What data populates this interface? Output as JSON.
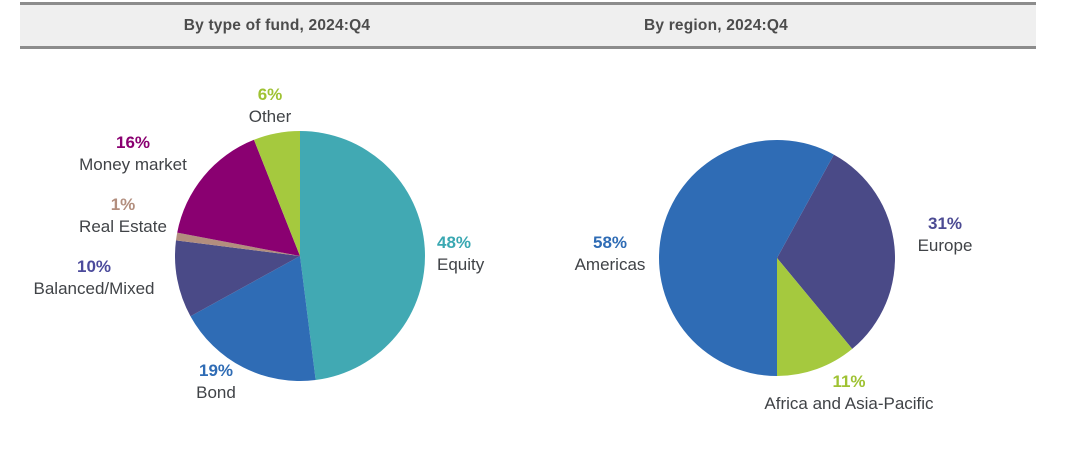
{
  "header": {
    "left_title": "By type of fund, 2024:Q4",
    "right_title": "By region, 2024:Q4"
  },
  "styles": {
    "background": "#ffffff",
    "header_bg": "#efefef",
    "header_border": "#8c8c8c",
    "header_text": "#4c4c4c",
    "category_text": "#404347"
  },
  "chart_data": [
    {
      "type": "pie",
      "title": "By type of fund, 2024:Q4",
      "unit": "%",
      "direction": "clockwise",
      "start_angle_deg": 0,
      "legend_position": "outside-callouts",
      "slices": [
        {
          "label": "Equity",
          "value": 48,
          "pct_label": "48%",
          "color": "#41a9b3",
          "label_color": "#3aa8b2"
        },
        {
          "label": "Bond",
          "value": 19,
          "pct_label": "19%",
          "color": "#2f6cb5",
          "label_color": "#2f6cb5"
        },
        {
          "label": "Balanced/Mixed",
          "value": 10,
          "pct_label": "10%",
          "color": "#4a4a87",
          "label_color": "#4c4b9c"
        },
        {
          "label": "Real Estate",
          "value": 1,
          "pct_label": "1%",
          "color": "#b28e7e",
          "label_color": "#b28e7e"
        },
        {
          "label": "Money market",
          "value": 16,
          "pct_label": "16%",
          "color": "#8a0071",
          "label_color": "#8a0071"
        },
        {
          "label": "Other",
          "value": 6,
          "pct_label": "6%",
          "color": "#a5c93e",
          "label_color": "#9fc233"
        }
      ]
    },
    {
      "type": "pie",
      "title": "By region, 2024:Q4",
      "unit": "%",
      "direction": "clockwise",
      "start_angle_deg": 28.8,
      "legend_position": "outside-callouts",
      "slices": [
        {
          "label": "Europe",
          "value": 31,
          "pct_label": "31%",
          "color": "#4a4a87",
          "label_color": "#4c4b93"
        },
        {
          "label": "Africa and Asia-Pacific",
          "value": 11,
          "pct_label": "11%",
          "color": "#a5c93e",
          "label_color": "#9fc233"
        },
        {
          "label": "Americas",
          "value": 58,
          "pct_label": "58%",
          "color": "#2f6cb5",
          "label_color": "#2f6cb5"
        }
      ]
    }
  ]
}
